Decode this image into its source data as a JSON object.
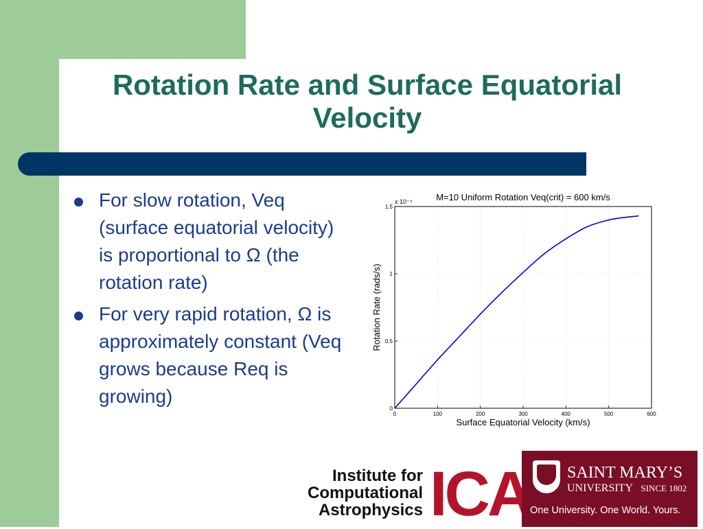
{
  "slide": {
    "title_line1": "Rotation Rate and Surface Equatorial",
    "title_line2": "Velocity",
    "bullets": [
      "For slow rotation, Veq (surface equatorial velocity) is proportional to Ω (the rotation rate)",
      "For very rapid rotation, Ω is approximately constant (Veq grows because Req is growing)"
    ]
  },
  "logos": {
    "ica_line1": "Institute for",
    "ica_line2": "Computational",
    "ica_line3": "Astrophysics",
    "ica_mark": "ICA",
    "smu_name": "SAINT MARY’S",
    "smu_university": "UNIVERSITY",
    "smu_since": "SINCE 1802",
    "smu_tagline": "One University. One World. Yours."
  },
  "colors": {
    "title": "#1e6b5c",
    "body_text": "#1b3c8c",
    "title_bar": "#003566",
    "left_band": "#9dcc98",
    "curve": "#0000dd",
    "smu_maroon": "#7a0e27",
    "ica_red": "#b4142a"
  },
  "chart_data": {
    "type": "line",
    "title": "M=10 Uniform Rotation  Veq(crit) = 600 km/s",
    "xlabel": "Surface Equatorial Velocity (km/s)",
    "ylabel": "Rotation Rate (rads/s)",
    "y_multiplier_label": "x 10⁻⁴",
    "xlim": [
      0,
      600
    ],
    "ylim": [
      0,
      1.5
    ],
    "xticks": [
      "0",
      "100",
      "200",
      "300",
      "400",
      "500",
      "600"
    ],
    "yticks": [
      "0",
      "0.5",
      "1",
      "1.5"
    ],
    "grid": true,
    "series": [
      {
        "x": [
          0,
          50,
          100,
          150,
          200,
          250,
          300,
          350,
          400,
          450,
          500,
          540,
          570
        ],
        "y": [
          0,
          0.18,
          0.36,
          0.53,
          0.7,
          0.86,
          1.01,
          1.15,
          1.26,
          1.35,
          1.4,
          1.42,
          1.43
        ]
      }
    ]
  }
}
